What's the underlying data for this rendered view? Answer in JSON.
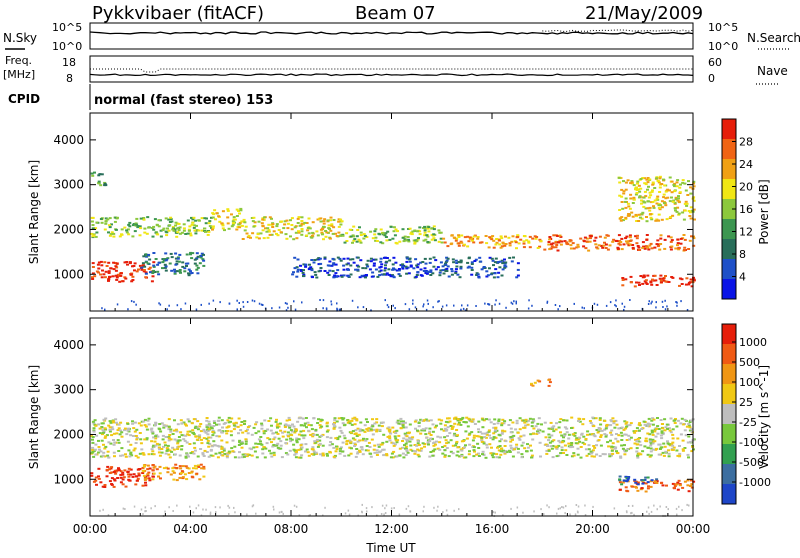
{
  "header": {
    "title": "Pykkvibaer (fitACF)",
    "beam": "Beam 07",
    "date": "21/May/2009"
  },
  "strips": {
    "nsky_label": "N.Sky",
    "nsearch_label": "N.Search",
    "noise_ticks_left": [
      "10^5",
      "10^0"
    ],
    "noise_ticks_right": [
      "10^5",
      "10^0"
    ],
    "freq_label": "Freq.",
    "freq_unit": "[MHz]",
    "freq_ticks": [
      "18",
      "8"
    ],
    "nave_label": "Nave",
    "nave_ticks": [
      "60",
      "0"
    ],
    "cpid_label": "CPID",
    "cpid_value": "normal (fast stereo) 153"
  },
  "chart_data": [
    {
      "type": "heatmap",
      "name": "power-panel",
      "ylabel": "Slant Range [km]",
      "xlabel": "",
      "x_ticks": [
        "00:00",
        "04:00",
        "08:00",
        "12:00",
        "16:00",
        "20:00",
        "00:00"
      ],
      "x_range_hours": [
        0,
        24
      ],
      "y_ticks": [
        "1000",
        "2000",
        "3000",
        "4000"
      ],
      "ylim": [
        180,
        4600
      ],
      "colorbar": {
        "label": "Power [dB]",
        "ticks": [
          "28",
          "24",
          "20",
          "16",
          "12",
          "8",
          "4"
        ],
        "colors": [
          "#0a14e6",
          "#1e50c8",
          "#286e5a",
          "#3c9650",
          "#8cc83c",
          "#f0e614",
          "#f0a014",
          "#f06414",
          "#e61e0a"
        ]
      },
      "bands": [
        {
          "t0": 0.0,
          "t1": 0.6,
          "r0": 3000,
          "r1": 3300,
          "level": 3
        },
        {
          "t0": 0.0,
          "t1": 4.8,
          "r0": 1850,
          "r1": 2300,
          "level": 4
        },
        {
          "t0": 4.8,
          "t1": 6.0,
          "r0": 2000,
          "r1": 2500,
          "level": 5
        },
        {
          "t0": 6.0,
          "t1": 10.0,
          "r0": 1800,
          "r1": 2300,
          "level": 5
        },
        {
          "t0": 10.0,
          "t1": 14.0,
          "r0": 1700,
          "r1": 2100,
          "level": 4
        },
        {
          "t0": 14.0,
          "t1": 18.0,
          "r0": 1600,
          "r1": 1900,
          "level": 6
        },
        {
          "t0": 18.0,
          "t1": 24.0,
          "r0": 1550,
          "r1": 1900,
          "level": 7
        },
        {
          "t0": 0.0,
          "t1": 2.5,
          "r0": 850,
          "r1": 1300,
          "level": 8
        },
        {
          "t0": 2.0,
          "t1": 4.5,
          "r0": 1000,
          "r1": 1500,
          "level": 2
        },
        {
          "t0": 8.0,
          "t1": 17.0,
          "r0": 950,
          "r1": 1400,
          "level": 1
        },
        {
          "t0": 21.0,
          "t1": 24.0,
          "r0": 750,
          "r1": 1000,
          "level": 8
        },
        {
          "t0": 21.0,
          "t1": 24.0,
          "r0": 2200,
          "r1": 3200,
          "level": 5
        }
      ]
    },
    {
      "type": "heatmap",
      "name": "velocity-panel",
      "ylabel": "Slant Range [km]",
      "xlabel": "Time UT",
      "x_ticks": [
        "00:00",
        "04:00",
        "08:00",
        "12:00",
        "16:00",
        "20:00",
        "00:00"
      ],
      "x_range_hours": [
        0,
        24
      ],
      "y_ticks": [
        "1000",
        "2000",
        "3000",
        "4000"
      ],
      "ylim": [
        180,
        4600
      ],
      "colorbar": {
        "label": "Velocity [m s^-1]",
        "ticks": [
          "1000",
          "500",
          "100",
          "25",
          "-25",
          "-100",
          "-500",
          "-1000"
        ],
        "colors": [
          "#1e46c8",
          "#3c6ea0",
          "#32a050",
          "#78c83c",
          "#bebebe",
          "#f0c814",
          "#f09614",
          "#f05a14",
          "#e61e0a"
        ]
      },
      "bands": [
        {
          "t0": 0.0,
          "t1": 24.0,
          "r0": 1500,
          "r1": 2400,
          "level": 4
        },
        {
          "t0": 0.0,
          "t1": 2.5,
          "r0": 850,
          "r1": 1300,
          "level": 8
        },
        {
          "t0": 2.0,
          "t1": 4.5,
          "r0": 1000,
          "r1": 1350,
          "level": 6
        },
        {
          "t0": 21.0,
          "t1": 24.0,
          "r0": 750,
          "r1": 1000,
          "level": 7
        },
        {
          "t0": 21.0,
          "t1": 22.5,
          "r0": 900,
          "r1": 1100,
          "level": 1
        },
        {
          "t0": 17.5,
          "t1": 18.3,
          "r0": 3100,
          "r1": 3250,
          "level": 6
        }
      ]
    }
  ]
}
